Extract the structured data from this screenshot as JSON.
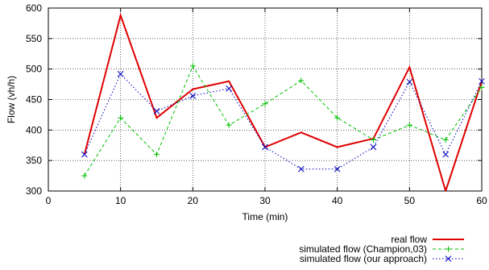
{
  "chart_data": {
    "type": "line",
    "title": "",
    "xlabel": "Time (min)",
    "ylabel": "Flow (vh/h)",
    "xlim": [
      0,
      60
    ],
    "ylim": [
      300,
      600
    ],
    "xticks": [
      0,
      10,
      20,
      30,
      40,
      50,
      60
    ],
    "yticks": [
      300,
      350,
      400,
      450,
      500,
      550,
      600
    ],
    "grid": true,
    "legend_position": "bottom-right",
    "x": [
      5,
      10,
      15,
      20,
      25,
      30,
      35,
      40,
      45,
      50,
      55,
      60
    ],
    "series": [
      {
        "name": "real flow",
        "color": "#e00000",
        "line_style": "solid",
        "marker": "none",
        "values": [
          360,
          588,
          420,
          467,
          480,
          372,
          396,
          372,
          386,
          503,
          300,
          480
        ]
      },
      {
        "name": "simulated flow (Champion,03)",
        "color": "#00c000",
        "line_style": "dashed",
        "marker": "plus",
        "values": [
          325,
          420,
          360,
          505,
          408,
          443,
          481,
          420,
          384,
          408,
          384,
          470
        ]
      },
      {
        "name": "simulated flow (our approach)",
        "color": "#0000c0",
        "line_style": "dotted",
        "marker": "cross",
        "values": [
          360,
          492,
          431,
          456,
          468,
          372,
          336,
          336,
          372,
          479,
          360,
          480
        ]
      }
    ]
  }
}
